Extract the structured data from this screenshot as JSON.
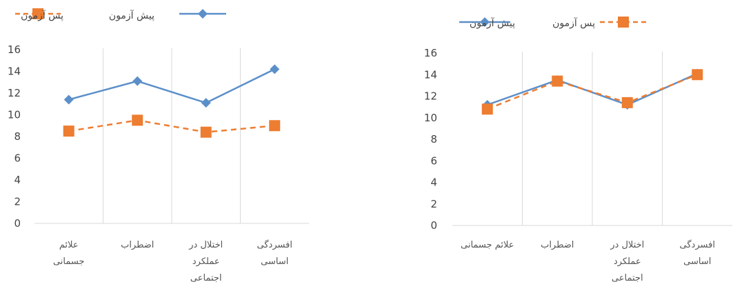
{
  "chart_data": [
    {
      "type": "line",
      "categories": [
        [
          "علائم",
          "جسمانی"
        ],
        [
          "اضطراب"
        ],
        [
          "اختلال در",
          "عملکرد",
          "اجتماعی"
        ],
        [
          "افسردگی",
          "اساسی"
        ]
      ],
      "series": [
        {
          "name": "پیش آزمون",
          "values": [
            11.4,
            13.1,
            11.1,
            14.2
          ],
          "color": "#5b8fc9",
          "marker": "diamond",
          "dash": "solid"
        },
        {
          "name": "پس آزمون",
          "values": [
            8.5,
            9.5,
            8.4,
            9.0
          ],
          "color": "#ed7d31",
          "marker": "square",
          "dash": "dashed"
        }
      ],
      "yticks": [
        "0",
        "2",
        "4",
        "6",
        "8",
        "10",
        "12",
        "14",
        "16"
      ],
      "ylim": [
        0,
        16
      ],
      "legend": "top",
      "grid": "vertical-category-separators"
    },
    {
      "type": "line",
      "categories": [
        [
          "علائم جسمانی"
        ],
        [
          "اضطراب"
        ],
        [
          "اختلال در",
          "عملکرد",
          "اجتماعی"
        ],
        [
          "افسردگی",
          "اساسی"
        ]
      ],
      "series": [
        {
          "name": "پیش آزمون",
          "values": [
            11.2,
            13.5,
            11.2,
            14.1
          ],
          "color": "#5b8fc9",
          "marker": "diamond",
          "dash": "solid"
        },
        {
          "name": "پس آزمون",
          "values": [
            10.8,
            13.4,
            11.4,
            14.0
          ],
          "color": "#ed7d31",
          "marker": "square",
          "dash": "dashed"
        }
      ],
      "yticks": [
        "0",
        "2",
        "4",
        "6",
        "8",
        "10",
        "12",
        "14",
        "16"
      ],
      "ylim": [
        0,
        16
      ],
      "legend": "top",
      "grid": "vertical-category-separators"
    }
  ]
}
